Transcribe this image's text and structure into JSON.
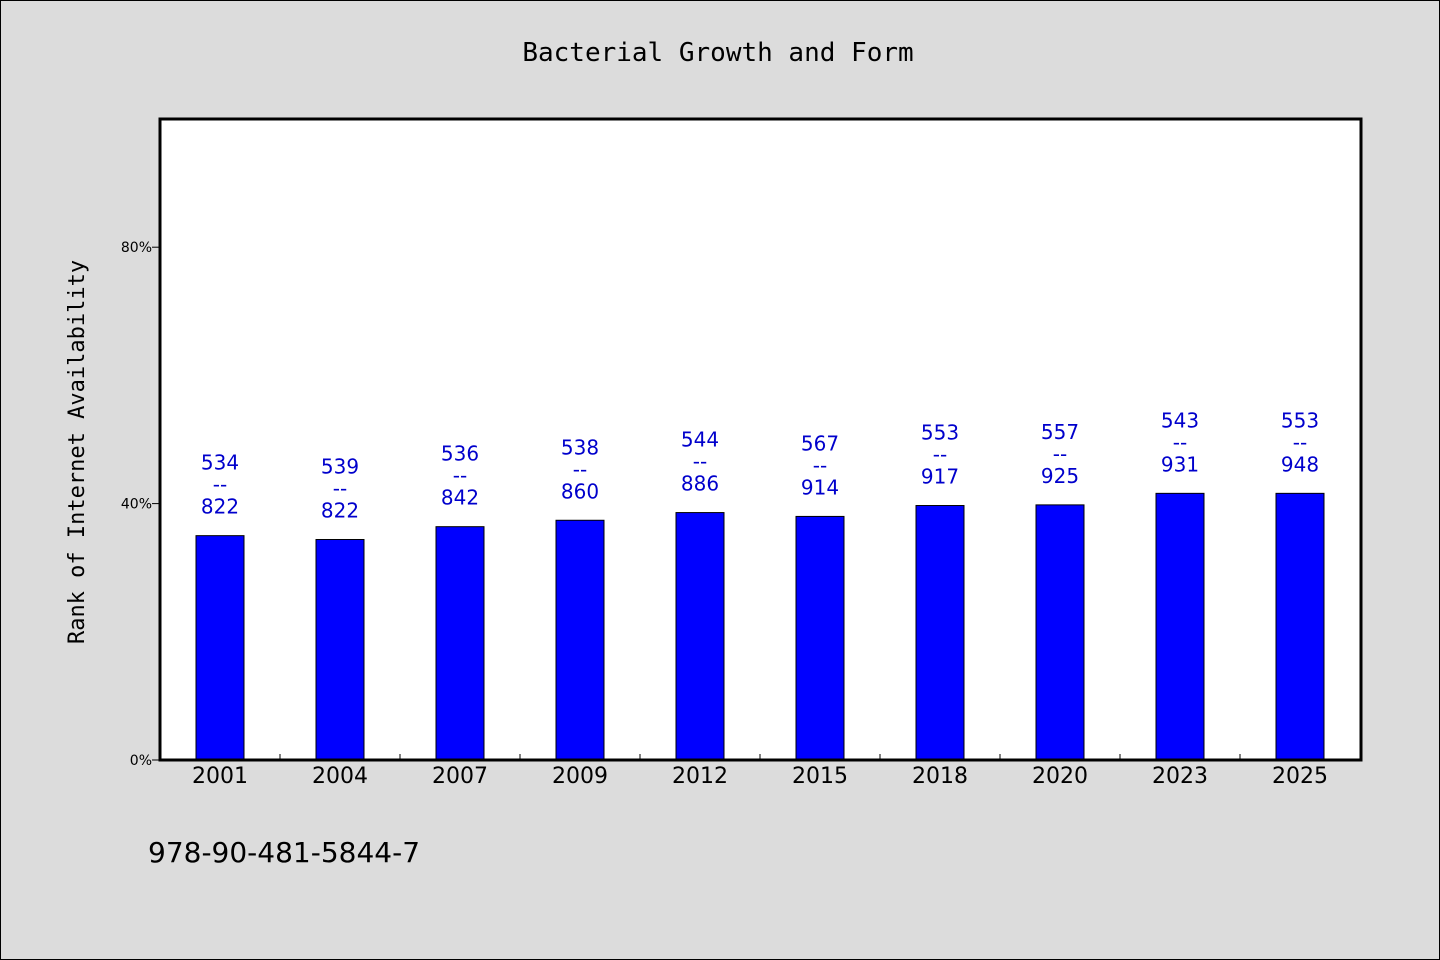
{
  "chart_data": {
    "type": "bar",
    "title": "Bacterial Growth and Form",
    "xlabel": "",
    "ylabel": "Rank of Internet Availability",
    "categories": [
      "2001",
      "2004",
      "2007",
      "2009",
      "2012",
      "2015",
      "2018",
      "2020",
      "2023",
      "2025"
    ],
    "values": [
      35,
      34.4,
      36.4,
      37.4,
      38.6,
      38,
      39.7,
      39.8,
      41.6,
      41.6
    ],
    "data_labels": [
      [
        "534",
        "--",
        "822"
      ],
      [
        "539",
        "--",
        "822"
      ],
      [
        "536",
        "--",
        "842"
      ],
      [
        "538",
        "--",
        "860"
      ],
      [
        "544",
        "--",
        "886"
      ],
      [
        "567",
        "--",
        "914"
      ],
      [
        "553",
        "--",
        "917"
      ],
      [
        "557",
        "--",
        "925"
      ],
      [
        "543",
        "--",
        "931"
      ],
      [
        "553",
        "--",
        "948"
      ]
    ],
    "ylim": [
      0,
      100
    ],
    "yticks": [
      0,
      40,
      80
    ],
    "ytick_labels": [
      "0%",
      "40%",
      "80%"
    ],
    "grid": false,
    "legend": "none",
    "bar_color": "#0000ff",
    "label_color": "#0000cc"
  },
  "footer": {
    "code": "978-90-481-5844-7"
  }
}
